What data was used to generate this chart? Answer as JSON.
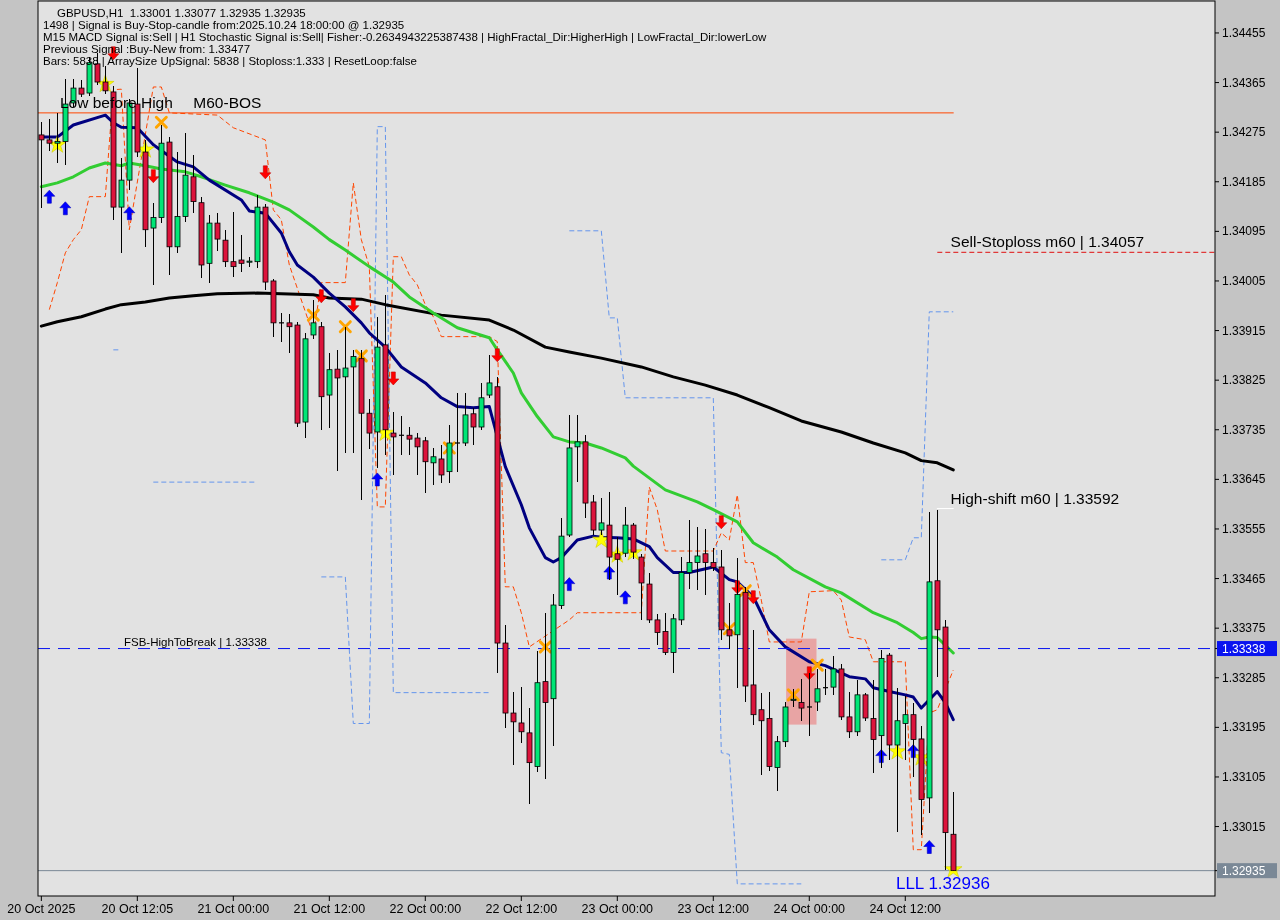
{
  "chart_data": {
    "type": "candlestick",
    "title": "GBPUSD,H1  1.33001 1.33077 1.32935 1.32935",
    "x": [
      "2025-10-20T00:00",
      "2025-10-20T01:00",
      "2025-10-20T02:00",
      "2025-10-20T03:00",
      "2025-10-20T04:00",
      "2025-10-20T05:00",
      "2025-10-20T06:00",
      "2025-10-20T07:00",
      "2025-10-20T08:00",
      "2025-10-20T09:00",
      "2025-10-20T10:00",
      "2025-10-20T11:00",
      "2025-10-20T12:00",
      "2025-10-20T13:00",
      "2025-10-20T14:00",
      "2025-10-20T15:00",
      "2025-10-20T16:00",
      "2025-10-20T17:00",
      "2025-10-20T18:00",
      "2025-10-20T19:00",
      "2025-10-20T20:00",
      "2025-10-20T21:00",
      "2025-10-20T22:00",
      "2025-10-20T23:00",
      "2025-10-21T00:00",
      "2025-10-21T01:00",
      "2025-10-21T02:00",
      "2025-10-21T03:00",
      "2025-10-21T04:00",
      "2025-10-21T05:00",
      "2025-10-21T06:00",
      "2025-10-21T07:00",
      "2025-10-21T08:00",
      "2025-10-21T09:00",
      "2025-10-21T10:00",
      "2025-10-21T11:00",
      "2025-10-21T12:00",
      "2025-10-21T13:00",
      "2025-10-21T14:00",
      "2025-10-21T15:00",
      "2025-10-21T16:00",
      "2025-10-21T17:00",
      "2025-10-21T18:00",
      "2025-10-21T19:00",
      "2025-10-21T20:00",
      "2025-10-21T21:00",
      "2025-10-21T22:00",
      "2025-10-21T23:00",
      "2025-10-22T00:00",
      "2025-10-22T01:00",
      "2025-10-22T02:00",
      "2025-10-22T03:00",
      "2025-10-22T04:00",
      "2025-10-22T05:00",
      "2025-10-22T06:00",
      "2025-10-22T07:00",
      "2025-10-22T08:00",
      "2025-10-22T09:00",
      "2025-10-22T10:00",
      "2025-10-22T11:00",
      "2025-10-22T12:00",
      "2025-10-22T13:00",
      "2025-10-22T14:00",
      "2025-10-22T15:00",
      "2025-10-22T16:00",
      "2025-10-22T17:00",
      "2025-10-22T18:00",
      "2025-10-22T19:00",
      "2025-10-22T20:00",
      "2025-10-22T21:00",
      "2025-10-22T22:00",
      "2025-10-22T23:00",
      "2025-10-23T00:00",
      "2025-10-23T01:00",
      "2025-10-23T02:00",
      "2025-10-23T03:00",
      "2025-10-23T04:00",
      "2025-10-23T05:00",
      "2025-10-23T06:00",
      "2025-10-23T07:00",
      "2025-10-23T08:00",
      "2025-10-23T09:00",
      "2025-10-23T10:00",
      "2025-10-23T11:00",
      "2025-10-23T12:00",
      "2025-10-23T13:00",
      "2025-10-23T14:00",
      "2025-10-23T15:00",
      "2025-10-23T16:00",
      "2025-10-23T17:00",
      "2025-10-23T18:00",
      "2025-10-23T19:00",
      "2025-10-23T20:00",
      "2025-10-23T21:00",
      "2025-10-23T22:00",
      "2025-10-23T23:00",
      "2025-10-24T00:00",
      "2025-10-24T01:00",
      "2025-10-24T02:00",
      "2025-10-24T03:00",
      "2025-10-24T04:00",
      "2025-10-24T05:00",
      "2025-10-24T06:00",
      "2025-10-24T07:00",
      "2025-10-24T08:00",
      "2025-10-24T09:00",
      "2025-10-24T10:00",
      "2025-10-24T11:00",
      "2025-10-24T12:00",
      "2025-10-24T13:00",
      "2025-10-24T14:00",
      "2025-10-24T15:00",
      "2025-10-24T16:00",
      "2025-10-24T17:00",
      "2025-10-24T18:00"
    ],
    "ohlc": [
      [
        1.3427,
        1.34294,
        1.34138,
        1.34261
      ],
      [
        1.34261,
        1.34298,
        1.3424,
        1.34255
      ],
      [
        1.34255,
        1.3431,
        1.34219,
        1.34258
      ],
      [
        1.34258,
        1.34371,
        1.34215,
        1.34326
      ],
      [
        1.34328,
        1.34372,
        1.3432,
        1.34355
      ],
      [
        1.34355,
        1.3437,
        1.34339,
        1.34344
      ],
      [
        1.34346,
        1.34412,
        1.3434,
        1.34401
      ],
      [
        1.34399,
        1.34419,
        1.34361,
        1.34366
      ],
      [
        1.34366,
        1.34395,
        1.34345,
        1.3435
      ],
      [
        1.34348,
        1.34358,
        1.34116,
        1.34139
      ],
      [
        1.34139,
        1.34228,
        1.34056,
        1.34188
      ],
      [
        1.34188,
        1.34335,
        1.3417,
        1.34328
      ],
      [
        1.34326,
        1.34392,
        1.3423,
        1.34239
      ],
      [
        1.34239,
        1.3426,
        1.34067,
        1.34098
      ],
      [
        1.34101,
        1.34147,
        1.33998,
        1.3412
      ],
      [
        1.3412,
        1.34288,
        1.3411,
        1.34255
      ],
      [
        1.34257,
        1.34266,
        1.34016,
        1.34067
      ],
      [
        1.34067,
        1.34239,
        1.34056,
        1.34122
      ],
      [
        1.34122,
        1.34274,
        1.34112,
        1.34197
      ],
      [
        1.34194,
        1.34234,
        1.34128,
        1.34149
      ],
      [
        1.34147,
        1.34158,
        1.3401,
        1.34034
      ],
      [
        1.34037,
        1.34125,
        1.34001,
        1.3411
      ],
      [
        1.3411,
        1.34128,
        1.3406,
        1.34081
      ],
      [
        1.34079,
        1.34098,
        1.34031,
        1.3404
      ],
      [
        1.3404,
        1.3413,
        1.34012,
        1.34031
      ],
      [
        1.34043,
        1.34089,
        1.34021,
        1.34037
      ],
      [
        1.34039,
        1.34048,
        1.3403,
        1.34041
      ],
      [
        1.3404,
        1.34161,
        1.34029,
        1.34139
      ],
      [
        1.34139,
        1.34145,
        1.33989,
        1.34003
      ],
      [
        1.34005,
        1.34008,
        1.33904,
        1.33929
      ],
      [
        1.33929,
        1.33947,
        1.33895,
        1.33929
      ],
      [
        1.33929,
        1.33945,
        1.33875,
        1.33922
      ],
      [
        1.33925,
        1.3393,
        1.3374,
        1.33747
      ],
      [
        1.33749,
        1.3391,
        1.3372,
        1.339
      ],
      [
        1.33907,
        1.33971,
        1.339,
        1.33929
      ],
      [
        1.33922,
        1.3393,
        1.33735,
        1.33795
      ],
      [
        1.33798,
        1.33875,
        1.33738,
        1.33844
      ],
      [
        1.33845,
        1.3388,
        1.3366,
        1.33829
      ],
      [
        1.33831,
        1.33922,
        1.33693,
        1.33847
      ],
      [
        1.33849,
        1.3388,
        1.33693,
        1.33868
      ],
      [
        1.33864,
        1.3388,
        1.33608,
        1.33765
      ],
      [
        1.33765,
        1.3379,
        1.337,
        1.33729
      ],
      [
        1.33731,
        1.3394,
        1.33665,
        1.33885
      ],
      [
        1.33889,
        1.3398,
        1.3369,
        1.33735
      ],
      [
        1.33729,
        1.33767,
        1.33653,
        1.33722
      ],
      [
        1.33725,
        1.3376,
        1.3369,
        1.33725
      ],
      [
        1.33725,
        1.3374,
        1.33689,
        1.33718
      ],
      [
        1.3372,
        1.3373,
        1.33653,
        1.33704
      ],
      [
        1.33715,
        1.33722,
        1.33621,
        1.33677
      ],
      [
        1.33675,
        1.33702,
        1.33635,
        1.33686
      ],
      [
        1.33682,
        1.33708,
        1.33638,
        1.33653
      ],
      [
        1.33659,
        1.33744,
        1.33638,
        1.33711
      ],
      [
        1.33711,
        1.33802,
        1.33659,
        1.33711
      ],
      [
        1.33711,
        1.33802,
        1.33706,
        1.33762
      ],
      [
        1.33764,
        1.33775,
        1.33708,
        1.3374
      ],
      [
        1.3374,
        1.3382,
        1.33735,
        1.33793
      ],
      [
        1.33798,
        1.33871,
        1.33792,
        1.3382
      ],
      [
        1.33813,
        1.33831,
        1.33294,
        1.33348
      ],
      [
        1.33348,
        1.33381,
        1.33194,
        1.33221
      ],
      [
        1.33221,
        1.3326,
        1.33127,
        1.33205
      ],
      [
        1.33203,
        1.33269,
        1.33167,
        1.33187
      ],
      [
        1.33185,
        1.33231,
        1.33056,
        1.33131
      ],
      [
        1.33124,
        1.33334,
        1.33114,
        1.33276
      ],
      [
        1.33278,
        1.33403,
        1.33102,
        1.3324
      ],
      [
        1.33247,
        1.33437,
        1.33162,
        1.33417
      ],
      [
        1.33416,
        1.33575,
        1.3341,
        1.33542
      ],
      [
        1.33544,
        1.33762,
        1.3354,
        1.33702
      ],
      [
        1.33704,
        1.33762,
        1.3364,
        1.33713
      ],
      [
        1.33713,
        1.33726,
        1.33575,
        1.33602
      ],
      [
        1.33604,
        1.33617,
        1.33544,
        1.33553
      ],
      [
        1.33553,
        1.33611,
        1.33544,
        1.33566
      ],
      [
        1.33562,
        1.33622,
        1.33463,
        1.33504
      ],
      [
        1.3351,
        1.3354,
        1.33436,
        1.335
      ],
      [
        1.33511,
        1.33595,
        1.33505,
        1.33562
      ],
      [
        1.33562,
        1.33565,
        1.335,
        1.33513
      ],
      [
        1.33504,
        1.3351,
        1.3339,
        1.33457
      ],
      [
        1.33455,
        1.33475,
        1.33385,
        1.3339
      ],
      [
        1.3339,
        1.334,
        1.33345,
        1.33367
      ],
      [
        1.33369,
        1.33403,
        1.33327,
        1.33331
      ],
      [
        1.33331,
        1.334,
        1.33294,
        1.33392
      ],
      [
        1.3339,
        1.33504,
        1.3338,
        1.33476
      ],
      [
        1.33476,
        1.33572,
        1.33446,
        1.33494
      ],
      [
        1.33494,
        1.33559,
        1.33444,
        1.33506
      ],
      [
        1.3351,
        1.33555,
        1.33436,
        1.33494
      ],
      [
        1.33494,
        1.3352,
        1.33478,
        1.33485
      ],
      [
        1.33486,
        1.33517,
        1.33354,
        1.33372
      ],
      [
        1.33372,
        1.33421,
        1.33338,
        1.33361
      ],
      [
        1.33363,
        1.33503,
        1.33267,
        1.33436
      ],
      [
        1.3344,
        1.3345,
        1.33241,
        1.3327
      ],
      [
        1.33272,
        1.33372,
        1.332,
        1.33218
      ],
      [
        1.33227,
        1.33258,
        1.33109,
        1.33207
      ],
      [
        1.33211,
        1.3326,
        1.33116,
        1.33124
      ],
      [
        1.33122,
        1.3318,
        1.3308,
        1.33169
      ],
      [
        1.33169,
        1.33241,
        1.3316,
        1.33232
      ],
      [
        1.33244,
        1.33265,
        1.33232,
        1.33246
      ],
      [
        1.3324,
        1.33283,
        1.33207,
        1.3323
      ],
      [
        1.33232,
        1.33294,
        1.3318,
        1.33232
      ],
      [
        1.33241,
        1.333,
        1.33225,
        1.33265
      ],
      [
        1.33267,
        1.333,
        1.33254,
        1.33267
      ],
      [
        1.33268,
        1.33325,
        1.33254,
        1.33301
      ],
      [
        1.33301,
        1.3331,
        1.33209,
        1.33214
      ],
      [
        1.33214,
        1.3326,
        1.33176,
        1.33187
      ],
      [
        1.33187,
        1.33281,
        1.3318,
        1.33254
      ],
      [
        1.33254,
        1.33258,
        1.33207,
        1.33212
      ],
      [
        1.33211,
        1.33281,
        1.33113,
        1.33173
      ],
      [
        1.3318,
        1.33336,
        1.33122,
        1.3332
      ],
      [
        1.33326,
        1.3333,
        1.33136,
        1.33163
      ],
      [
        1.33163,
        1.33267,
        1.33006,
        1.33207
      ],
      [
        1.33202,
        1.33251,
        1.33136,
        1.33218
      ],
      [
        1.33218,
        1.3324,
        1.33105,
        1.33173
      ],
      [
        1.33174,
        1.33198,
        1.33,
        1.33064
      ],
      [
        1.33067,
        1.33586,
        1.3304,
        1.33459
      ],
      [
        1.33461,
        1.3359,
        1.33287,
        1.33372
      ],
      [
        1.33377,
        1.3339,
        1.32937,
        1.33004
      ],
      [
        1.33001,
        1.33077,
        1.32935,
        1.32935
      ]
    ],
    "series": [
      {
        "type": "bar",
        "color": "#e8a4a4",
        "x": [
          "2025-10-23T23:00"
        ],
        "base": [
          1.332
        ],
        "values": [
          0.00156
        ]
      },
      {
        "type": "line",
        "color": "#6495ed",
        "line_style": "dashed",
        "x": [
          "2025-10-20T09:00",
          "2025-10-20T10:00",
          "2025-10-20T11:00",
          "2025-10-20T14:00",
          "2025-10-21T03:00",
          "2025-10-21T04:00",
          "2025-10-21T11:00",
          "2025-10-21T14:00",
          "2025-10-21T15:00",
          "2025-10-21T17:00",
          "2025-10-21T18:00",
          "2025-10-21T19:00",
          "2025-10-21T20:00",
          "2025-10-22T08:00",
          "2025-10-22T09:00",
          "2025-10-22T18:00",
          "2025-10-22T22:00",
          "2025-10-22T23:00",
          "2025-10-23T00:00",
          "2025-10-23T01:00",
          "2025-10-23T12:00",
          "2025-10-23T13:00",
          "2025-10-23T14:00",
          "2025-10-23T15:00",
          "2025-10-23T23:00",
          "2025-10-24T00:00",
          "2025-10-24T09:00",
          "2025-10-24T12:00",
          "2025-10-24T13:00",
          "2025-10-24T14:00",
          "2025-10-24T15:00",
          "2025-10-24T18:00"
        ],
        "values": [
          1.3388,
          1.3388,
          null,
          1.3364,
          1.3364,
          null,
          1.33468,
          1.33468,
          1.33202,
          1.33202,
          1.34285,
          1.34285,
          1.33258,
          1.33258,
          null,
          1.34096,
          1.34096,
          1.33938,
          1.33938,
          1.33793,
          1.33793,
          1.33149,
          1.33146,
          1.32911,
          1.32911,
          null,
          1.33499,
          1.33499,
          1.33539,
          1.33539,
          1.33949,
          1.33949
        ]
      },
      {
        "type": "line",
        "color": "#ff4500",
        "line_style": "dashed",
        "x": [
          "2025-10-20T01:00",
          "2025-10-20T02:00",
          "2025-10-20T03:00",
          "2025-10-20T04:00",
          "2025-10-20T05:00",
          "2025-10-20T06:00",
          "2025-10-20T08:00",
          "2025-10-20T09:00",
          "2025-10-20T10:00",
          "2025-10-20T11:00",
          "2025-10-20T14:00",
          "2025-10-20T15:00",
          "2025-10-20T16:00",
          "2025-10-20T22:00",
          "2025-10-21T00:00",
          "2025-10-21T04:00",
          "2025-10-21T05:00",
          "2025-10-21T06:00",
          "2025-10-21T07:00",
          "2025-10-21T10:00",
          "2025-10-21T11:00",
          "2025-10-21T14:00",
          "2025-10-21T15:00",
          "2025-10-21T16:00",
          "2025-10-21T17:00",
          "2025-10-21T18:00",
          "2025-10-21T19:00",
          "2025-10-21T20:00",
          "2025-10-21T21:00",
          "2025-10-21T22:00",
          "2025-10-21T23:00",
          "2025-10-22T00:00",
          "2025-10-22T01:00",
          "2025-10-22T02:00",
          "2025-10-22T08:00",
          "2025-10-22T09:00",
          "2025-10-22T10:00",
          "2025-10-22T11:00",
          "2025-10-22T12:00",
          "2025-10-22T13:00",
          "2025-10-22T18:00",
          "2025-10-22T19:00",
          "2025-10-23T03:00",
          "2025-10-23T04:00",
          "2025-10-23T05:00",
          "2025-10-23T06:00",
          "2025-10-23T12:00",
          "2025-10-23T13:00",
          "2025-10-23T14:00",
          "2025-10-23T15:00",
          "2025-10-23T16:00",
          "2025-10-23T17:00",
          "2025-10-23T18:00",
          "2025-10-23T19:00",
          "2025-10-23T23:00",
          "2025-10-24T00:00",
          "2025-10-24T03:00",
          "2025-10-24T04:00",
          "2025-10-24T05:00",
          "2025-10-24T07:00",
          "2025-10-24T08:00",
          "2025-10-24T12:00",
          "2025-10-24T13:00",
          "2025-10-24T14:00",
          "2025-10-24T15:00",
          "2025-10-24T16:00",
          "2025-10-24T18:00"
        ],
        "values": [
          1.33953,
          1.34002,
          1.34056,
          1.3408,
          1.34098,
          1.34158,
          1.34158,
          1.34352,
          1.34353,
          1.34098,
          1.34357,
          1.34357,
          1.3431,
          1.34306,
          1.34283,
          1.34261,
          1.34134,
          1.34116,
          1.34034,
          1.33907,
          1.34002,
          1.34002,
          1.34183,
          1.3408,
          1.34031,
          1.33595,
          1.33595,
          1.34049,
          1.34049,
          1.34016,
          1.33998,
          1.33962,
          1.3394,
          1.33904,
          1.33904,
          1.33895,
          1.3345,
          1.3345,
          1.33403,
          1.33341,
          1.3339,
          1.33403,
          1.33403,
          1.33631,
          1.3359,
          1.33515,
          1.33515,
          1.33548,
          1.33535,
          1.33617,
          1.33494,
          1.33494,
          1.33426,
          1.3335,
          1.3335,
          1.33441,
          1.33443,
          1.33426,
          1.33359,
          1.33354,
          1.33314,
          1.33314,
          1.32973,
          1.32973,
          1.33221,
          1.33227,
          1.33299
        ]
      },
      {
        "type": "line",
        "color": "#000000",
        "x": [
          "2025-10-20T00:00",
          "2025-10-20T02:00",
          "2025-10-20T05:00",
          "2025-10-20T08:00",
          "2025-10-20T10:00",
          "2025-10-20T13:00",
          "2025-10-20T16:00",
          "2025-10-20T19:00",
          "2025-10-20T22:00",
          "2025-10-21T03:00",
          "2025-10-21T06:00",
          "2025-10-21T10:00",
          "2025-10-21T12:00",
          "2025-10-21T16:00",
          "2025-10-21T19:00",
          "2025-10-22T02:00",
          "2025-10-22T08:00",
          "2025-10-22T11:00",
          "2025-10-22T15:00",
          "2025-10-22T18:00",
          "2025-10-22T22:00",
          "2025-10-23T03:00",
          "2025-10-23T07:00",
          "2025-10-23T11:00",
          "2025-10-23T15:00",
          "2025-10-23T19:00",
          "2025-10-23T23:00",
          "2025-10-24T04:00",
          "2025-10-24T08:00",
          "2025-10-24T12:00",
          "2025-10-24T14:00",
          "2025-10-24T16:00",
          "2025-10-24T18:00"
        ],
        "values": [
          1.33923,
          1.33931,
          1.3394,
          1.33954,
          1.33962,
          1.33967,
          1.33974,
          1.33978,
          1.33982,
          1.33983,
          1.33982,
          1.3398,
          1.33974,
          1.33972,
          1.33962,
          1.33943,
          1.33934,
          1.33916,
          1.33885,
          1.33876,
          1.33865,
          1.33849,
          1.33831,
          1.33816,
          1.33798,
          1.33775,
          1.33751,
          1.33731,
          1.33711,
          1.33693,
          1.33679,
          1.33675,
          1.33662
        ]
      },
      {
        "type": "line",
        "color": "#32cd32",
        "x": [
          "2025-10-20T00:00",
          "2025-10-20T02:00",
          "2025-10-20T04:00",
          "2025-10-20T06:00",
          "2025-10-20T08:00",
          "2025-10-20T10:00",
          "2025-10-20T11:00",
          "2025-10-20T13:00",
          "2025-10-20T15:00",
          "2025-10-20T18:00",
          "2025-10-20T20:00",
          "2025-10-20T23:00",
          "2025-10-21T02:00",
          "2025-10-21T05:00",
          "2025-10-21T07:00",
          "2025-10-21T10:00",
          "2025-10-21T12:00",
          "2025-10-21T14:00",
          "2025-10-21T17:00",
          "2025-10-21T20:00",
          "2025-10-21T22:00",
          "2025-10-22T01:00",
          "2025-10-22T04:00",
          "2025-10-22T06:00",
          "2025-10-22T08:00",
          "2025-10-22T09:00",
          "2025-10-22T11:00",
          "2025-10-22T12:00",
          "2025-10-22T14:00",
          "2025-10-22T16:00",
          "2025-10-22T18:00",
          "2025-10-22T20:00",
          "2025-10-22T22:00",
          "2025-10-23T01:00",
          "2025-10-23T02:00",
          "2025-10-23T06:00",
          "2025-10-23T10:00",
          "2025-10-23T12:00",
          "2025-10-23T15:00",
          "2025-10-23T17:00",
          "2025-10-23T20:00",
          "2025-10-23T22:00",
          "2025-10-24T02:00",
          "2025-10-24T04:00",
          "2025-10-24T08:00",
          "2025-10-24T11:00",
          "2025-10-24T13:00",
          "2025-10-24T14:00",
          "2025-10-24T15:00",
          "2025-10-24T16:00",
          "2025-10-24T18:00"
        ],
        "values": [
          1.34176,
          1.34183,
          1.34194,
          1.3421,
          1.34219,
          1.34214,
          1.34219,
          1.34214,
          1.34208,
          1.34203,
          1.34194,
          1.34179,
          1.34165,
          1.34148,
          1.34134,
          1.34103,
          1.3408,
          1.34061,
          1.34031,
          1.34003,
          1.33976,
          1.33947,
          1.3392,
          1.33911,
          1.33902,
          1.3388,
          1.33838,
          1.33802,
          1.33759,
          1.33722,
          1.33713,
          1.33711,
          1.33702,
          1.33684,
          1.33669,
          1.33626,
          1.33604,
          1.3359,
          1.33568,
          1.3353,
          1.33504,
          1.33481,
          1.3345,
          1.33439,
          1.33403,
          1.33385,
          1.33367,
          1.33356,
          1.33359,
          1.33358,
          1.3333
        ]
      },
      {
        "type": "line",
        "color": "#000080",
        "x": [
          "2025-10-20T00:00",
          "2025-10-20T02:00",
          "2025-10-20T04:00",
          "2025-10-20T08:00",
          "2025-10-20T09:00",
          "2025-10-20T10:00",
          "2025-10-20T12:00",
          "2025-10-20T14:00",
          "2025-10-20T17:00",
          "2025-10-20T19:00",
          "2025-10-20T21:00",
          "2025-10-21T01:00",
          "2025-10-21T02:00",
          "2025-10-21T04:00",
          "2025-10-21T06:00",
          "2025-10-21T07:00",
          "2025-10-21T08:00",
          "2025-10-21T10:00",
          "2025-10-21T12:00",
          "2025-10-21T14:00",
          "2025-10-21T16:00",
          "2025-10-21T17:00",
          "2025-10-21T19:00",
          "2025-10-21T21:00",
          "2025-10-22T00:00",
          "2025-10-22T02:00",
          "2025-10-22T04:00",
          "2025-10-22T06:00",
          "2025-10-22T08:00",
          "2025-10-22T10:00",
          "2025-10-22T12:00",
          "2025-10-22T13:00",
          "2025-10-22T15:00",
          "2025-10-22T16:00",
          "2025-10-22T17:00",
          "2025-10-22T19:00",
          "2025-10-22T21:00",
          "2025-10-22T22:00",
          "2025-10-23T00:00",
          "2025-10-23T02:00",
          "2025-10-23T04:00",
          "2025-10-23T05:00",
          "2025-10-23T07:00",
          "2025-10-23T09:00",
          "2025-10-23T12:00",
          "2025-10-23T14:00",
          "2025-10-23T15:00",
          "2025-10-23T17:00",
          "2025-10-23T19:00",
          "2025-10-23T21:00",
          "2025-10-24T00:00",
          "2025-10-24T02:00",
          "2025-10-24T05:00",
          "2025-10-24T07:00",
          "2025-10-24T08:00",
          "2025-10-24T10:00",
          "2025-10-24T12:00",
          "2025-10-24T13:00",
          "2025-10-24T14:00",
          "2025-10-24T15:00",
          "2025-10-24T16:00",
          "2025-10-24T17:00",
          "2025-10-24T18:00"
        ],
        "values": [
          1.34266,
          1.34266,
          1.34288,
          1.34306,
          1.34292,
          1.34284,
          1.34283,
          1.34252,
          1.34221,
          1.34212,
          1.34188,
          1.34152,
          1.34132,
          1.34128,
          1.34092,
          1.34058,
          1.34034,
          1.34012,
          1.33983,
          1.33958,
          1.33929,
          1.33911,
          1.33885,
          1.33849,
          1.3382,
          1.33793,
          1.33777,
          1.33775,
          1.33777,
          1.33668,
          1.33599,
          1.33557,
          1.33503,
          1.33495,
          1.33503,
          1.33535,
          1.33542,
          1.3354,
          1.33539,
          1.33537,
          1.33523,
          1.33503,
          1.33476,
          1.33476,
          1.33486,
          1.33463,
          1.33459,
          1.33432,
          1.33372,
          1.33341,
          1.33314,
          1.33307,
          1.33287,
          1.33283,
          1.33267,
          1.3326,
          1.33254,
          1.3325,
          1.3323,
          1.33245,
          1.3326,
          1.3324,
          1.33209
        ]
      },
      {
        "type": "line",
        "color": "#ff4500",
        "x": [
          "2025-10-19T23:35",
          "2025-10-24T18:00"
        ],
        "values": [
          1.3431,
          1.3431
        ]
      },
      {
        "type": "line",
        "color": "#e01010",
        "line_style": "dashed",
        "x": [
          "2025-10-24T16:00",
          "2025-10-26T02:43"
        ],
        "values": [
          1.34057,
          1.34057
        ]
      },
      {
        "type": "line",
        "color": "#ffffff",
        "x": [
          "2025-10-24T16:00",
          "2025-10-24T18:00"
        ],
        "values": [
          1.33592,
          1.33592
        ]
      },
      {
        "type": "scatter",
        "marker": "star",
        "color": "#ffff00",
        "x": [
          "2025-10-20T02:00",
          "2025-10-20T08:00",
          "2025-10-20T13:00",
          "2025-10-21T19:00",
          "2025-10-22T22:00",
          "2025-10-23T00:00",
          "2025-10-23T02:00",
          "2025-10-24T11:00",
          "2025-10-24T14:00",
          "2025-10-24T18:00"
        ],
        "values": [
          1.34252,
          1.34362,
          1.34243,
          1.33729,
          1.33535,
          1.33508,
          1.33512,
          1.33151,
          1.3314,
          1.32937
        ]
      },
      {
        "type": "scatter",
        "marker": "cross",
        "color": "#ffa500",
        "x": [
          "2025-10-20T15:00",
          "2025-10-21T10:00",
          "2025-10-21T14:00",
          "2025-10-21T16:00",
          "2025-10-22T03:00",
          "2025-10-22T15:00",
          "2025-10-23T14:00",
          "2025-10-23T16:00",
          "2025-10-23T22:00",
          "2025-10-24T01:00"
        ],
        "values": [
          1.34293,
          1.33943,
          1.33922,
          1.33869,
          1.33702,
          1.33341,
          1.33374,
          1.33443,
          1.33254,
          1.33308
        ]
      },
      {
        "type": "scatter",
        "marker": "triangle",
        "color": "#0000ff",
        "x": [
          "2025-10-20T01:00",
          "2025-10-20T03:00",
          "2025-10-20T11:00",
          "2025-10-21T18:00",
          "2025-10-22T18:00",
          "2025-10-22T23:00",
          "2025-10-23T01:00",
          "2025-10-24T09:00",
          "2025-10-24T13:00",
          "2025-10-24T15:00"
        ],
        "values": [
          1.34157,
          1.34136,
          1.34127,
          1.33644,
          1.33454,
          1.33475,
          1.3343,
          1.33142,
          1.33151,
          1.32977
        ]
      },
      {
        "type": "scatter",
        "marker": "triangle",
        "color": "#ff0000",
        "x": [
          "2025-10-20T09:00",
          "2025-10-20T14:00",
          "2025-10-21T04:00",
          "2025-10-21T11:00",
          "2025-10-21T15:00",
          "2025-10-21T20:00",
          "2025-10-22T09:00",
          "2025-10-23T13:00",
          "2025-10-23T15:00",
          "2025-10-23T17:00",
          "2025-10-24T00:00"
        ],
        "values": [
          1.34419,
          1.34196,
          1.34203,
          1.33978,
          1.33962,
          1.33829,
          1.33871,
          1.33568,
          1.3345,
          1.33432,
          1.33294
        ]
      }
    ],
    "xlim": [
      "2025-10-19T23:35",
      "2025-10-26T02:43"
    ],
    "ylim": [
      1.32889,
      1.34513
    ],
    "xticks": [
      {
        "value": "2025-10-20T00:00",
        "label": "20 Oct 2025"
      },
      {
        "value": "2025-10-20T12:00",
        "label": "20 Oct 12:05"
      },
      {
        "value": "2025-10-21T00:00",
        "label": "21 Oct 00:00"
      },
      {
        "value": "2025-10-21T12:00",
        "label": "21 Oct 12:00"
      },
      {
        "value": "2025-10-22T00:00",
        "label": "22 Oct 00:00"
      },
      {
        "value": "2025-10-22T12:00",
        "label": "22 Oct 12:00"
      },
      {
        "value": "2025-10-23T00:00",
        "label": "23 Oct 00:00"
      },
      {
        "value": "2025-10-23T12:00",
        "label": "23 Oct 12:00"
      },
      {
        "value": "2025-10-24T00:00",
        "label": "24 Oct 00:00"
      },
      {
        "value": "2025-10-24T12:00",
        "label": "24 Oct 12:00"
      }
    ],
    "yticks": [
      1.32935,
      1.33015,
      1.33105,
      1.33195,
      1.33285,
      1.33338,
      1.33375,
      1.33465,
      1.33555,
      1.33645,
      1.33735,
      1.33825,
      1.33915,
      1.34005,
      1.34095,
      1.34185,
      1.34275,
      1.34365,
      1.34455
    ],
    "ref_lines": [
      {
        "axis": "y",
        "value": 1.33338,
        "label": "FSB-HighToBreak | 1.33338",
        "color": "#0a14f0",
        "line_style": "dashed"
      },
      {
        "axis": "y",
        "value": 1.32935,
        "label": null,
        "color": "#7a8896"
      }
    ],
    "annotations": [
      "1498 | Signal is Buy-Stop-candle from:2025.10.24 18:00:00 @ 1.32935",
      "M15 MACD Signal is:Sell | H1 Stochastic Signal is:Sell| Fisher:-0.2634943225387438 | HighFractal_Dir:HigherHigh | LowFractal_Dir:lowerLow",
      "Previous Signal :Buy-New from: 1.33477",
      "Bars: 5838 | ArraySize UpSignal: 5838 | Stoploss:1.333 | ResetLoop:false",
      {
        "text": "Low before High",
        "x": "2025-10-20T02:20",
        "y": 1.3431
      },
      {
        "text": "M60-BOS",
        "x": "2025-10-20T19:00",
        "y": 1.3431
      },
      {
        "text": "Sell-Stoploss m60 | 1.34057",
        "x": "2025-10-24T17:40",
        "y": 1.34057
      },
      {
        "text": "High-shift m60 | 1.33592",
        "x": "2025-10-24T17:40",
        "y": 1.33592
      },
      {
        "text": "LLL 1.32936",
        "x": "2025-10-24T10:50",
        "y": 1.32936
      }
    ]
  }
}
